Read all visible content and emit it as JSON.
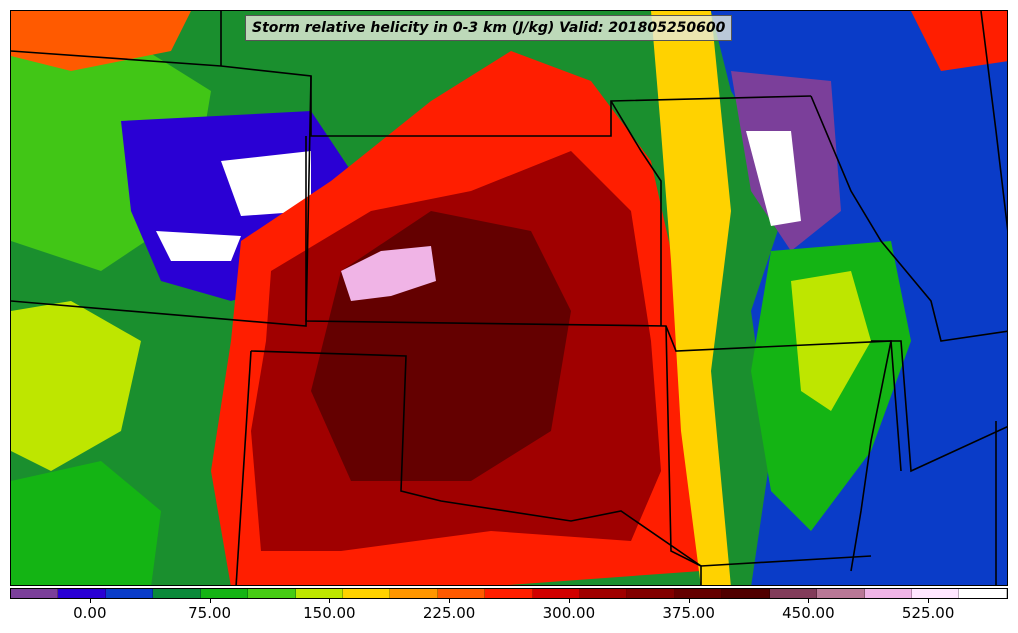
{
  "title": "Storm relative helicity in 0-3 km (J/kg) Valid: 201805250600",
  "colorbar": {
    "colors": [
      "#7b3f9a",
      "#2a00d4",
      "#0a3cc8",
      "#0a8a3a",
      "#14b414",
      "#46cc14",
      "#bee600",
      "#ffd200",
      "#ff9600",
      "#ff5a00",
      "#ff1e00",
      "#d20000",
      "#a00000",
      "#820000",
      "#640000",
      "#500000",
      "#823c5a",
      "#b97896",
      "#f0b4e6",
      "#ffe6ff",
      "#ffffff"
    ],
    "tick_labels": [
      "0.00",
      "75.00",
      "150.00",
      "225.00",
      "300.00",
      "375.00",
      "450.00",
      "525.00"
    ],
    "tick_values": [
      0,
      75,
      150,
      225,
      300,
      375,
      450,
      525
    ],
    "min": -50,
    "max": 575
  },
  "map_colors": {
    "background": "#1a8f2e",
    "outline": "#000000"
  }
}
